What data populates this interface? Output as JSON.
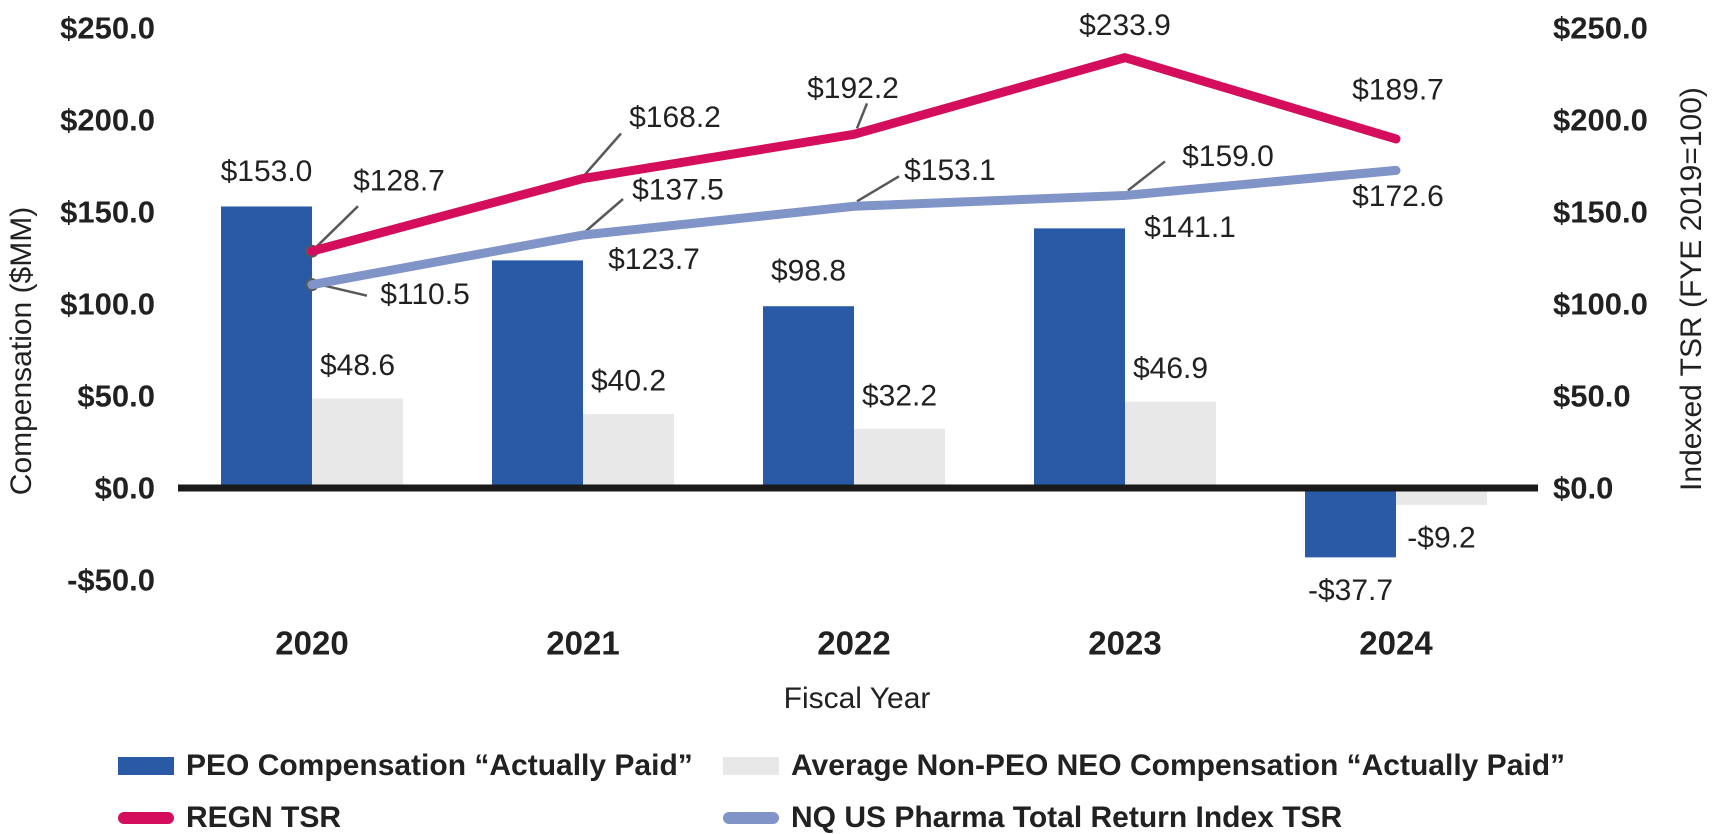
{
  "chart_data": {
    "type": "combo-bar-line",
    "title": "",
    "categories": [
      "2020",
      "2021",
      "2022",
      "2023",
      "2024"
    ],
    "xlabel": "Fiscal Year",
    "grid": false,
    "legend_position": "bottom",
    "left_axis": {
      "title": "Compensation ($MM)",
      "range": [
        -50,
        250
      ],
      "ticks": [
        {
          "label": "$250.0",
          "value": 250
        },
        {
          "label": "$200.0",
          "value": 200
        },
        {
          "label": "$150.0",
          "value": 150
        },
        {
          "label": "$100.0",
          "value": 100
        },
        {
          "label": "$50.0",
          "value": 50
        },
        {
          "label": "$0.0",
          "value": 0
        },
        {
          "label": "-$50.0",
          "value": -50
        }
      ]
    },
    "right_axis": {
      "title": "Indexed TSR (FYE 2019=100)",
      "range": [
        0,
        250
      ],
      "ticks": [
        {
          "label": "$250.0",
          "value": 250
        },
        {
          "label": "$200.0",
          "value": 200
        },
        {
          "label": "$150.0",
          "value": 150
        },
        {
          "label": "$100.0",
          "value": 100
        },
        {
          "label": "$50.0",
          "value": 50
        },
        {
          "label": "$0.0",
          "value": 0
        }
      ]
    },
    "bar_series": [
      {
        "name": "PEO Compensation “Actually Paid”",
        "color": "#2A59A6",
        "values": [
          153.0,
          123.7,
          98.8,
          141.1,
          -37.7
        ],
        "labels": [
          "$153.0",
          "$123.7",
          "$98.8",
          "$141.1",
          "-$37.7"
        ]
      },
      {
        "name": "Average Non-PEO NEO Compensation “Actually Paid”",
        "color": "#E8E8E8",
        "values": [
          48.6,
          40.2,
          32.2,
          46.9,
          -9.2
        ],
        "labels": [
          "$48.6",
          "$40.2",
          "$32.2",
          "$46.9",
          "-$9.2"
        ]
      }
    ],
    "line_series": [
      {
        "name": "REGN TSR",
        "color": "#D40E5C",
        "values": [
          128.7,
          168.2,
          192.2,
          233.9,
          189.7
        ],
        "labels": [
          "$128.7",
          "$168.2",
          "$192.2",
          "$233.9",
          "$189.7"
        ]
      },
      {
        "name": "NQ US Pharma Total Return Index TSR",
        "color": "#8094C8",
        "values": [
          110.5,
          137.5,
          153.1,
          159.0,
          172.6
        ],
        "labels": [
          "$110.5",
          "$137.5",
          "$153.1",
          "$159.0",
          "$172.6"
        ]
      }
    ],
    "colors": {
      "axis_line": "#1A1A1A",
      "callout": "#58595B",
      "text": "#212121"
    }
  }
}
